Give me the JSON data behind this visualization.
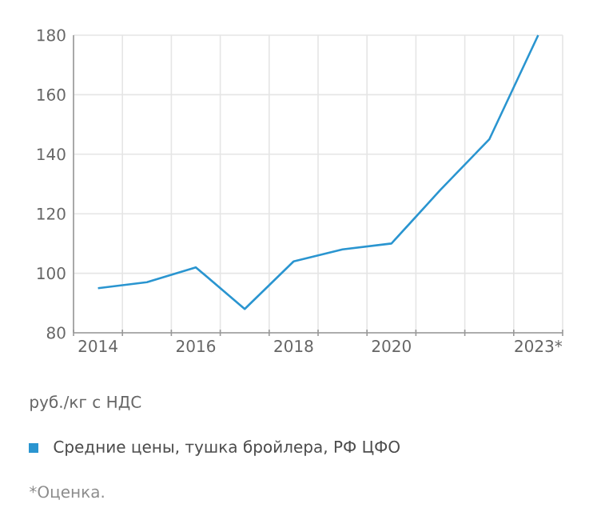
{
  "chart_data": {
    "type": "line",
    "ylabel": "руб./кг с НДС",
    "categories": [
      "2014",
      null,
      "2016",
      null,
      "2018",
      null,
      "2020",
      null,
      null,
      "2023*"
    ],
    "series": [
      {
        "name": "Средние цены, тушка бройлера, РФ ЦФО",
        "color": "#2a95d0",
        "values": [
          95,
          97,
          102,
          88,
          104,
          108,
          110,
          128,
          145,
          180
        ]
      }
    ],
    "ylim": [
      80,
      180
    ],
    "yticks": [
      80,
      100,
      120,
      140,
      160,
      180
    ],
    "grid": true,
    "legend": "bottom",
    "annotations": [
      "*Оценка."
    ]
  }
}
